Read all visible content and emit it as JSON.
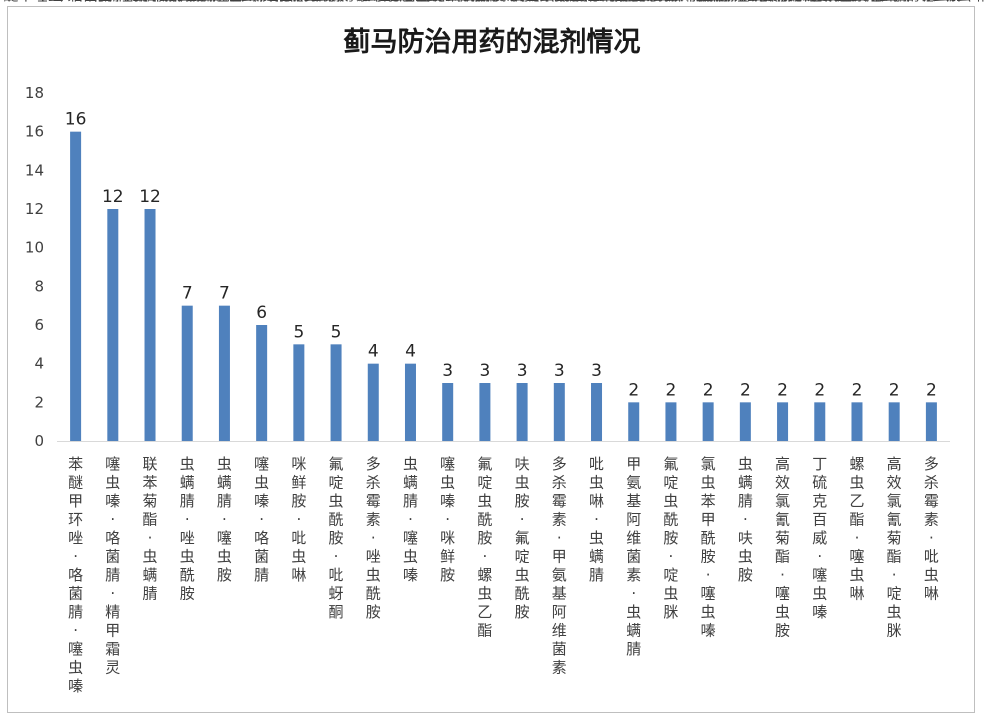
{
  "chart_data": {
    "type": "bar",
    "title": "蓟马防治用药的混剂情况",
    "xlabel": "",
    "ylabel": "",
    "ylim": [
      0,
      18
    ],
    "yticks": [
      0,
      2,
      4,
      6,
      8,
      10,
      12,
      14,
      16,
      18
    ],
    "grid": false,
    "legend": "none",
    "bar_color": "#4f81bd",
    "categories": [
      "苯醚甲环唑·咯菌腈·噻虫嗪",
      "噻虫嗪·咯菌腈·精甲霜灵",
      "联苯菊酯·虫螨腈",
      "虫螨腈·唑虫酰胺",
      "虫螨腈·噻虫胺",
      "噻虫嗪·咯菌腈",
      "咪鲜胺·吡虫啉",
      "氟啶虫酰胺·吡蚜酮",
      "多杀霉素·唑虫酰胺",
      "虫螨腈·噻虫嗪",
      "噻虫嗪·咪鲜胺",
      "氟啶虫酰胺·螺虫乙酯",
      "呋虫胺·氟啶虫酰胺",
      "多杀霉素·甲氨基阿维菌素",
      "吡虫啉·虫螨腈",
      "甲氨基阿维菌素·虫螨腈",
      "氟啶虫酰胺·啶虫脒",
      "氯虫苯甲酰胺·噻虫嗪",
      "虫螨腈·呋虫胺",
      "高效氯氰菊酯·噻虫胺",
      "丁硫克百威·噻虫嗪",
      "螺虫乙酯·噻虫啉",
      "高效氯氰菊酯·啶虫脒",
      "多杀霉素·吡虫啉"
    ],
    "values": [
      16,
      12,
      12,
      7,
      7,
      6,
      5,
      5,
      4,
      4,
      3,
      3,
      3,
      3,
      3,
      2,
      2,
      2,
      2,
      2,
      2,
      2,
      2,
      2
    ]
  }
}
